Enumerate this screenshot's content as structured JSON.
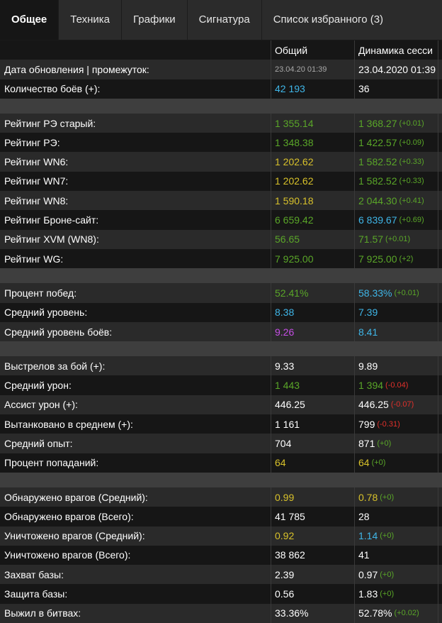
{
  "tabs": [
    {
      "label": "Общее",
      "active": true
    },
    {
      "label": "Техника"
    },
    {
      "label": "Графики"
    },
    {
      "label": "Сигнатура"
    },
    {
      "label": "Список избранного (3)"
    }
  ],
  "columns": {
    "total": "Общий",
    "session": "Динамика сесси"
  },
  "colors": {
    "green": "#5aa628",
    "yellow": "#d8c12a",
    "blue": "#3fb6e8",
    "purple": "#c64ee6",
    "white": "#ffffff",
    "red": "#e0302b"
  },
  "rows": [
    {
      "label": "Дата обновления | промежуток:",
      "total": "23.04.20 01:39",
      "total_color": "small",
      "session": "23.04.2020 01:39",
      "session_color": "w",
      "delta": ""
    },
    {
      "label": "Количество боёв (+):",
      "total": "42 193",
      "total_color": "b",
      "session": "36",
      "session_color": "w",
      "delta": ""
    },
    {
      "separator": true
    },
    {
      "label": "Рейтинг РЭ старый:",
      "total": "1 355.14",
      "total_color": "g",
      "session": "1 368.27",
      "session_color": "g",
      "delta": "(+0.01)",
      "delta_color": "g"
    },
    {
      "label": "Рейтинг РЭ:",
      "total": "1 348.38",
      "total_color": "g",
      "session": "1 422.57",
      "session_color": "g",
      "delta": "(+0.09)",
      "delta_color": "g"
    },
    {
      "label": "Рейтинг WN6:",
      "total": "1 202.62",
      "total_color": "y",
      "session": "1 582.52",
      "session_color": "g",
      "delta": "(+0.33)",
      "delta_color": "g"
    },
    {
      "label": "Рейтинг WN7:",
      "total": "1 202.62",
      "total_color": "y",
      "session": "1 582.52",
      "session_color": "g",
      "delta": "(+0.33)",
      "delta_color": "g"
    },
    {
      "label": "Рейтинг WN8:",
      "total": "1 590.18",
      "total_color": "y",
      "session": "2 044.30",
      "session_color": "g",
      "delta": "(+0.41)",
      "delta_color": "g"
    },
    {
      "label": "Рейтинг Броне-сайт:",
      "total": "6 659.42",
      "total_color": "g",
      "session": "6 839.67",
      "session_color": "b",
      "delta": "(+0.69)",
      "delta_color": "g"
    },
    {
      "label": "Рейтинг XVM (WN8):",
      "total": "56.65",
      "total_color": "g",
      "session": "71.57",
      "session_color": "g",
      "delta": "(+0.01)",
      "delta_color": "g"
    },
    {
      "label": "Рейтинг WG:",
      "total": "7 925.00",
      "total_color": "g",
      "session": "7 925.00",
      "session_color": "g",
      "delta": "(+2)",
      "delta_color": "g"
    },
    {
      "separator": true
    },
    {
      "label": "Процент побед:",
      "total": "52.41%",
      "total_color": "g",
      "session": "58.33%",
      "session_color": "b",
      "delta": "(+0.01)",
      "delta_color": "g"
    },
    {
      "label": "Средний уровень:",
      "total": "8.38",
      "total_color": "b",
      "session": "7.39",
      "session_color": "b",
      "delta": ""
    },
    {
      "label": "Средний уровень боёв:",
      "total": "9.26",
      "total_color": "p",
      "session": "8.41",
      "session_color": "b",
      "delta": ""
    },
    {
      "separator": true
    },
    {
      "label": "Выстрелов за бой (+):",
      "total": "9.33",
      "total_color": "w",
      "session": "9.89",
      "session_color": "w",
      "delta": ""
    },
    {
      "label": "Средний урон:",
      "total": "1 443",
      "total_color": "g",
      "session": "1 394",
      "session_color": "g",
      "delta": "(-0.04)",
      "delta_color": "r"
    },
    {
      "label": "Ассист урон (+):",
      "total": "446.25",
      "total_color": "w",
      "session": "446.25",
      "session_color": "w",
      "delta": "(-0.07)",
      "delta_color": "r"
    },
    {
      "label": "Вытанковано в среднем (+):",
      "total": "1 161",
      "total_color": "w",
      "session": "799",
      "session_color": "w",
      "delta": "(-0.31)",
      "delta_color": "r"
    },
    {
      "label": "Средний опыт:",
      "total": "704",
      "total_color": "w",
      "session": "871",
      "session_color": "w",
      "delta": "(+0)",
      "delta_color": "g"
    },
    {
      "label": "Процент попаданий:",
      "total": "64",
      "total_color": "y",
      "session": "64",
      "session_color": "y",
      "delta": "(+0)",
      "delta_color": "g"
    },
    {
      "separator": true
    },
    {
      "label": "Обнаружено врагов (Средний):",
      "total": "0.99",
      "total_color": "y",
      "session": "0.78",
      "session_color": "y",
      "delta": "(+0)",
      "delta_color": "g"
    },
    {
      "label": "Обнаружено врагов (Всего):",
      "total": "41 785",
      "total_color": "w",
      "session": "28",
      "session_color": "w",
      "delta": ""
    },
    {
      "label": "Уничтожено врагов (Средний):",
      "total": "0.92",
      "total_color": "y",
      "session": "1.14",
      "session_color": "b",
      "delta": "(+0)",
      "delta_color": "g"
    },
    {
      "label": "Уничтожено врагов (Всего):",
      "total": "38 862",
      "total_color": "w",
      "session": "41",
      "session_color": "w",
      "delta": ""
    },
    {
      "label": "Захват базы:",
      "total": "2.39",
      "total_color": "w",
      "session": "0.97",
      "session_color": "w",
      "delta": "(+0)",
      "delta_color": "g"
    },
    {
      "label": "Защита базы:",
      "total": "0.56",
      "total_color": "w",
      "session": "1.83",
      "session_color": "w",
      "delta": "(+0)",
      "delta_color": "g"
    },
    {
      "label": "Выжил в битвах:",
      "total": "33.36%",
      "total_color": "w",
      "session": "52.78%",
      "session_color": "w",
      "delta": "(+0.02)",
      "delta_color": "g"
    }
  ]
}
